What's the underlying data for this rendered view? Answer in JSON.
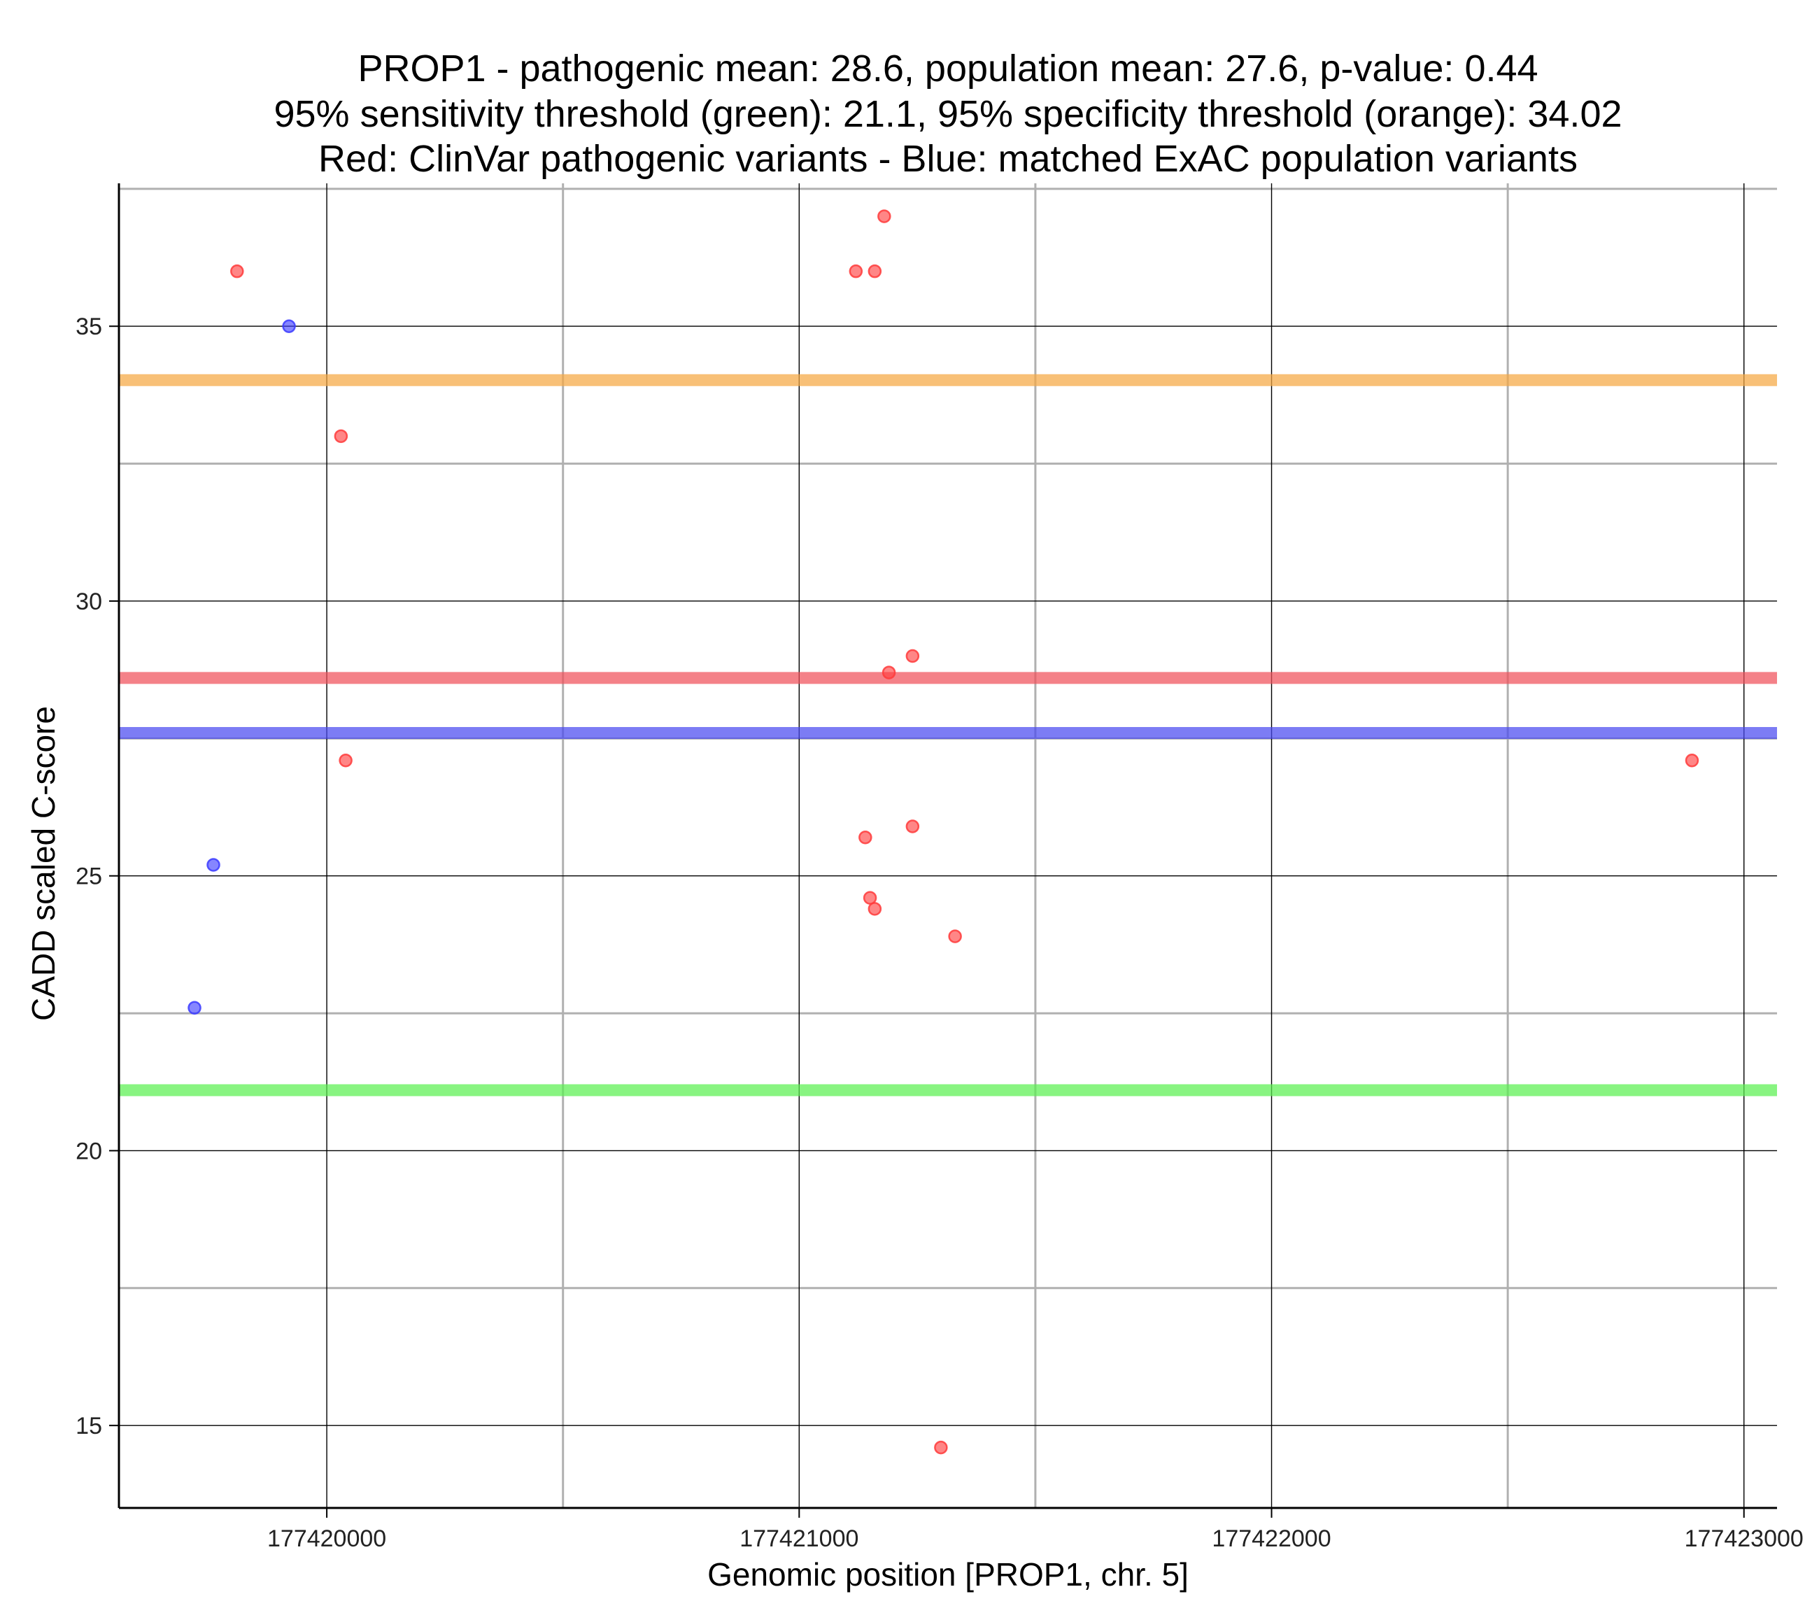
{
  "chart_data": {
    "type": "scatter",
    "title_lines": [
      "PROP1 - pathogenic mean: 28.6, population mean: 27.6, p-value: 0.44",
      "95% sensitivity threshold (green): 21.1, 95% specificity threshold (orange): 34.02",
      "Red: ClinVar pathogenic variants - Blue: matched ExAC population variants"
    ],
    "xlabel": "Genomic position [PROP1, chr. 5]",
    "ylabel": "CADD scaled C-score",
    "xlim": [
      177419560,
      177423070
    ],
    "ylim": [
      13.5,
      37.6
    ],
    "x_ticks": [
      177420000,
      177421000,
      177422000,
      177423000
    ],
    "x_tick_labels": [
      "177420000",
      "177421000",
      "177422000",
      "177423000"
    ],
    "x_minor_grid": [
      177420500,
      177421500,
      177422500
    ],
    "y_ticks": [
      15,
      20,
      25,
      30,
      35
    ],
    "y_tick_labels": [
      "15",
      "20",
      "25",
      "30",
      "35"
    ],
    "y_minor_grid": [
      17.5,
      22.5,
      27.5,
      32.5,
      37.5
    ],
    "hlines": [
      {
        "name": "specificity-threshold",
        "y": 34.02,
        "color": "#f5a742"
      },
      {
        "name": "pathogenic-mean",
        "y": 28.6,
        "color": "#f0505a"
      },
      {
        "name": "population-mean",
        "y": 27.6,
        "color": "#4a4af0"
      },
      {
        "name": "sensitivity-threshold",
        "y": 21.1,
        "color": "#5af050"
      }
    ],
    "series": [
      {
        "name": "ClinVar pathogenic variants",
        "color": "#ff3b3b",
        "points": [
          {
            "x": 177419810,
            "y": 36.0
          },
          {
            "x": 177420030,
            "y": 33.0
          },
          {
            "x": 177420040,
            "y": 27.1
          },
          {
            "x": 177421120,
            "y": 36.0
          },
          {
            "x": 177421160,
            "y": 36.0
          },
          {
            "x": 177421180,
            "y": 37.0
          },
          {
            "x": 177421190,
            "y": 28.7
          },
          {
            "x": 177421240,
            "y": 29.0
          },
          {
            "x": 177421240,
            "y": 25.9
          },
          {
            "x": 177421140,
            "y": 25.7
          },
          {
            "x": 177421150,
            "y": 24.6
          },
          {
            "x": 177421160,
            "y": 24.4
          },
          {
            "x": 177421330,
            "y": 23.9
          },
          {
            "x": 177421300,
            "y": 14.6
          },
          {
            "x": 177422890,
            "y": 27.1
          }
        ]
      },
      {
        "name": "matched ExAC population variants",
        "color": "#3b3bff",
        "points": [
          {
            "x": 177419920,
            "y": 35.0
          },
          {
            "x": 177419760,
            "y": 25.2
          },
          {
            "x": 177419720,
            "y": 22.6
          }
        ]
      }
    ]
  }
}
